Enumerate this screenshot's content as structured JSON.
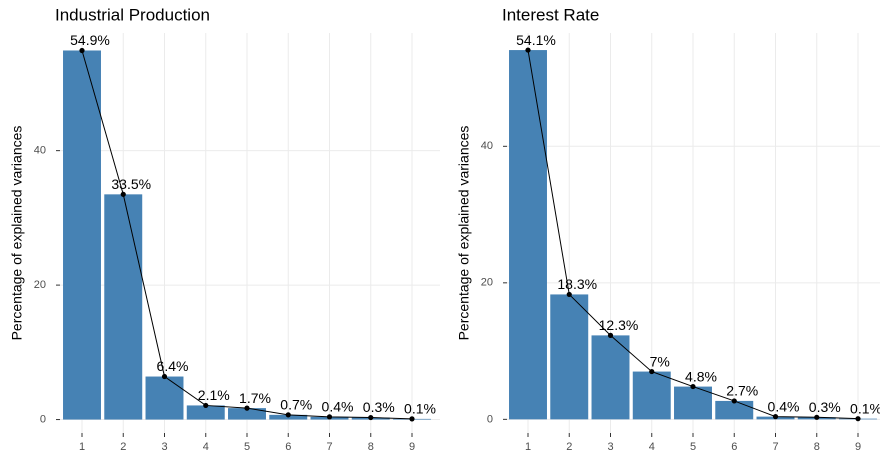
{
  "chart_data": [
    {
      "type": "bar",
      "title": "Industrial Production",
      "y_label": "Percentage of explained variances",
      "categories": [
        "1",
        "2",
        "3",
        "4",
        "5",
        "6",
        "7",
        "8",
        "9"
      ],
      "values": [
        54.9,
        33.5,
        6.4,
        2.1,
        1.7,
        0.7,
        0.4,
        0.3,
        0.1
      ],
      "value_labels": [
        "54.9%",
        "33.5%",
        "6.4%",
        "2.1%",
        "1.7%",
        "0.7%",
        "0.4%",
        "0.3%",
        "0.1%"
      ],
      "color": "#4682b4",
      "line_color": "#000000",
      "ylim": [
        -2,
        57.5
      ],
      "yticks": [
        0,
        20,
        40
      ],
      "grid": true
    },
    {
      "type": "bar",
      "title": "Interest Rate",
      "y_label": "Percentage of explained variances",
      "categories": [
        "1",
        "2",
        "3",
        "4",
        "5",
        "6",
        "7",
        "8",
        "9"
      ],
      "values": [
        54.1,
        18.3,
        12.3,
        7,
        4.8,
        2.7,
        0.4,
        0.3,
        0.1
      ],
      "value_labels": [
        "54.1%",
        "18.3%",
        "12.3%",
        "7%",
        "4.8%",
        "2.7%",
        "0.4%",
        "0.3%",
        "0.1%"
      ],
      "color": "#4682b4",
      "line_color": "#000000",
      "ylim": [
        -2,
        56.6
      ],
      "yticks": [
        0,
        20,
        40
      ],
      "grid": true
    }
  ]
}
